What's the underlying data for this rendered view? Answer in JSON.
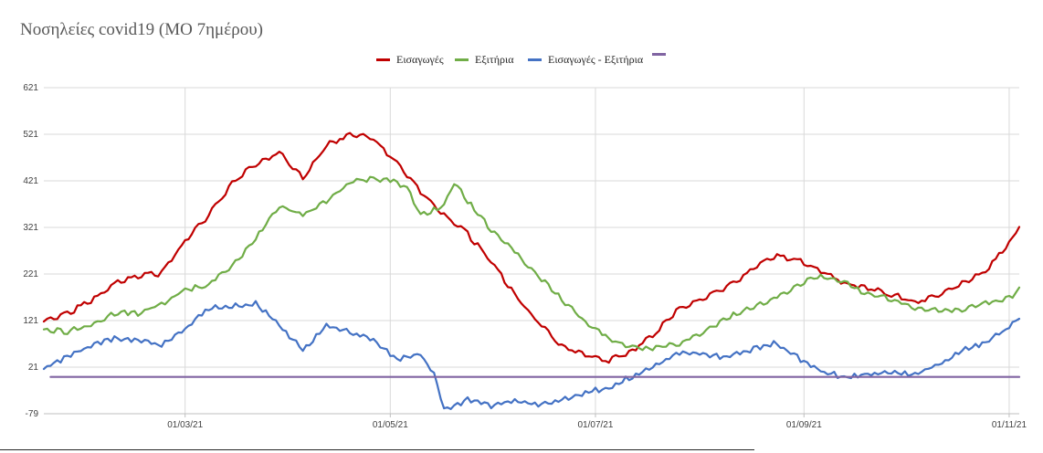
{
  "chart_data": {
    "type": "line",
    "title": "Νοσηλείες covid19 (ΜΟ 7ημέρου)",
    "xlabel": "",
    "ylabel": "",
    "x_start": "2021-01-18",
    "x_end": "2021-11-04",
    "x_ticks": [
      "01/03/21",
      "01/05/21",
      "01/07/21",
      "01/09/21",
      "01/11/21"
    ],
    "y_ticks": [
      621,
      521,
      421,
      321,
      221,
      121,
      21,
      -79
    ],
    "ylim": [
      -79,
      621
    ],
    "grid": true,
    "legend_position": "top-center",
    "series": [
      {
        "name": "Εισαγωγές",
        "color": "#C00000",
        "points": [
          [
            "2021-01-18",
            122
          ],
          [
            "2021-01-25",
            140
          ],
          [
            "2021-02-01",
            165
          ],
          [
            "2021-02-08",
            205
          ],
          [
            "2021-02-15",
            220
          ],
          [
            "2021-02-22",
            225
          ],
          [
            "2021-03-01",
            295
          ],
          [
            "2021-03-08",
            350
          ],
          [
            "2021-03-15",
            420
          ],
          [
            "2021-03-22",
            460
          ],
          [
            "2021-03-29",
            485
          ],
          [
            "2021-04-05",
            430
          ],
          [
            "2021-04-12",
            500
          ],
          [
            "2021-04-19",
            525
          ],
          [
            "2021-04-26",
            515
          ],
          [
            "2021-05-03",
            460
          ],
          [
            "2021-05-10",
            400
          ],
          [
            "2021-05-17",
            350
          ],
          [
            "2021-05-24",
            310
          ],
          [
            "2021-05-31",
            250
          ],
          [
            "2021-06-07",
            180
          ],
          [
            "2021-06-14",
            120
          ],
          [
            "2021-06-21",
            70
          ],
          [
            "2021-06-28",
            50
          ],
          [
            "2021-07-05",
            38
          ],
          [
            "2021-07-12",
            60
          ],
          [
            "2021-07-19",
            100
          ],
          [
            "2021-07-26",
            150
          ],
          [
            "2021-08-02",
            170
          ],
          [
            "2021-08-09",
            195
          ],
          [
            "2021-08-16",
            230
          ],
          [
            "2021-08-23",
            262
          ],
          [
            "2021-08-30",
            255
          ],
          [
            "2021-09-06",
            230
          ],
          [
            "2021-09-13",
            205
          ],
          [
            "2021-09-20",
            195
          ],
          [
            "2021-09-27",
            180
          ],
          [
            "2021-10-04",
            165
          ],
          [
            "2021-10-11",
            180
          ],
          [
            "2021-10-18",
            205
          ],
          [
            "2021-10-25",
            230
          ],
          [
            "2021-11-01",
            290
          ],
          [
            "2021-11-04",
            322
          ]
        ]
      },
      {
        "name": "Εξιτήρια",
        "color": "#70AD47",
        "points": [
          [
            "2021-01-18",
            105
          ],
          [
            "2021-01-25",
            100
          ],
          [
            "2021-02-01",
            115
          ],
          [
            "2021-02-08",
            140
          ],
          [
            "2021-02-15",
            140
          ],
          [
            "2021-02-22",
            160
          ],
          [
            "2021-03-01",
            190
          ],
          [
            "2021-03-08",
            200
          ],
          [
            "2021-03-15",
            240
          ],
          [
            "2021-03-22",
            300
          ],
          [
            "2021-03-29",
            370
          ],
          [
            "2021-04-05",
            350
          ],
          [
            "2021-04-12",
            380
          ],
          [
            "2021-04-19",
            420
          ],
          [
            "2021-04-26",
            430
          ],
          [
            "2021-05-03",
            420
          ],
          [
            "2021-05-06",
            410
          ],
          [
            "2021-05-10",
            350
          ],
          [
            "2021-05-17",
            370
          ],
          [
            "2021-05-20",
            420
          ],
          [
            "2021-05-24",
            380
          ],
          [
            "2021-05-31",
            320
          ],
          [
            "2021-06-07",
            270
          ],
          [
            "2021-06-14",
            220
          ],
          [
            "2021-06-21",
            170
          ],
          [
            "2021-06-28",
            120
          ],
          [
            "2021-07-05",
            85
          ],
          [
            "2021-07-12",
            65
          ],
          [
            "2021-07-19",
            65
          ],
          [
            "2021-07-26",
            75
          ],
          [
            "2021-08-02",
            100
          ],
          [
            "2021-08-09",
            130
          ],
          [
            "2021-08-16",
            150
          ],
          [
            "2021-08-23",
            170
          ],
          [
            "2021-08-30",
            200
          ],
          [
            "2021-09-06",
            220
          ],
          [
            "2021-09-13",
            205
          ],
          [
            "2021-09-20",
            180
          ],
          [
            "2021-09-27",
            170
          ],
          [
            "2021-10-04",
            150
          ],
          [
            "2021-10-11",
            145
          ],
          [
            "2021-10-18",
            148
          ],
          [
            "2021-10-25",
            160
          ],
          [
            "2021-11-01",
            172
          ],
          [
            "2021-11-04",
            192
          ]
        ]
      },
      {
        "name": "Εισαγωγές - Εξιτήρια",
        "color": "#4472C4",
        "points": [
          [
            "2021-01-18",
            20
          ],
          [
            "2021-01-25",
            45
          ],
          [
            "2021-02-01",
            70
          ],
          [
            "2021-02-08",
            85
          ],
          [
            "2021-02-15",
            80
          ],
          [
            "2021-02-22",
            70
          ],
          [
            "2021-03-01",
            105
          ],
          [
            "2021-03-08",
            150
          ],
          [
            "2021-03-15",
            155
          ],
          [
            "2021-03-22",
            160
          ],
          [
            "2021-03-29",
            115
          ],
          [
            "2021-04-05",
            60
          ],
          [
            "2021-04-12",
            115
          ],
          [
            "2021-04-19",
            100
          ],
          [
            "2021-04-26",
            80
          ],
          [
            "2021-05-03",
            40
          ],
          [
            "2021-05-10",
            50
          ],
          [
            "2021-05-14",
            10
          ],
          [
            "2021-05-17",
            -70
          ],
          [
            "2021-05-24",
            -45
          ],
          [
            "2021-05-31",
            -60
          ],
          [
            "2021-06-07",
            -50
          ],
          [
            "2021-06-14",
            -55
          ],
          [
            "2021-06-21",
            -45
          ],
          [
            "2021-06-28",
            -30
          ],
          [
            "2021-07-05",
            -20
          ],
          [
            "2021-07-12",
            5
          ],
          [
            "2021-07-19",
            30
          ],
          [
            "2021-07-26",
            55
          ],
          [
            "2021-08-02",
            50
          ],
          [
            "2021-08-09",
            45
          ],
          [
            "2021-08-16",
            60
          ],
          [
            "2021-08-23",
            75
          ],
          [
            "2021-08-30",
            45
          ],
          [
            "2021-09-06",
            15
          ],
          [
            "2021-09-13",
            3
          ],
          [
            "2021-09-20",
            10
          ],
          [
            "2021-09-27",
            15
          ],
          [
            "2021-10-04",
            10
          ],
          [
            "2021-10-11",
            30
          ],
          [
            "2021-10-18",
            60
          ],
          [
            "2021-10-25",
            75
          ],
          [
            "2021-11-01",
            110
          ],
          [
            "2021-11-04",
            125
          ]
        ]
      },
      {
        "name": "",
        "color": "#8064A2",
        "points": [
          [
            "2021-01-20",
            0
          ],
          [
            "2021-11-04",
            0
          ]
        ]
      }
    ]
  }
}
